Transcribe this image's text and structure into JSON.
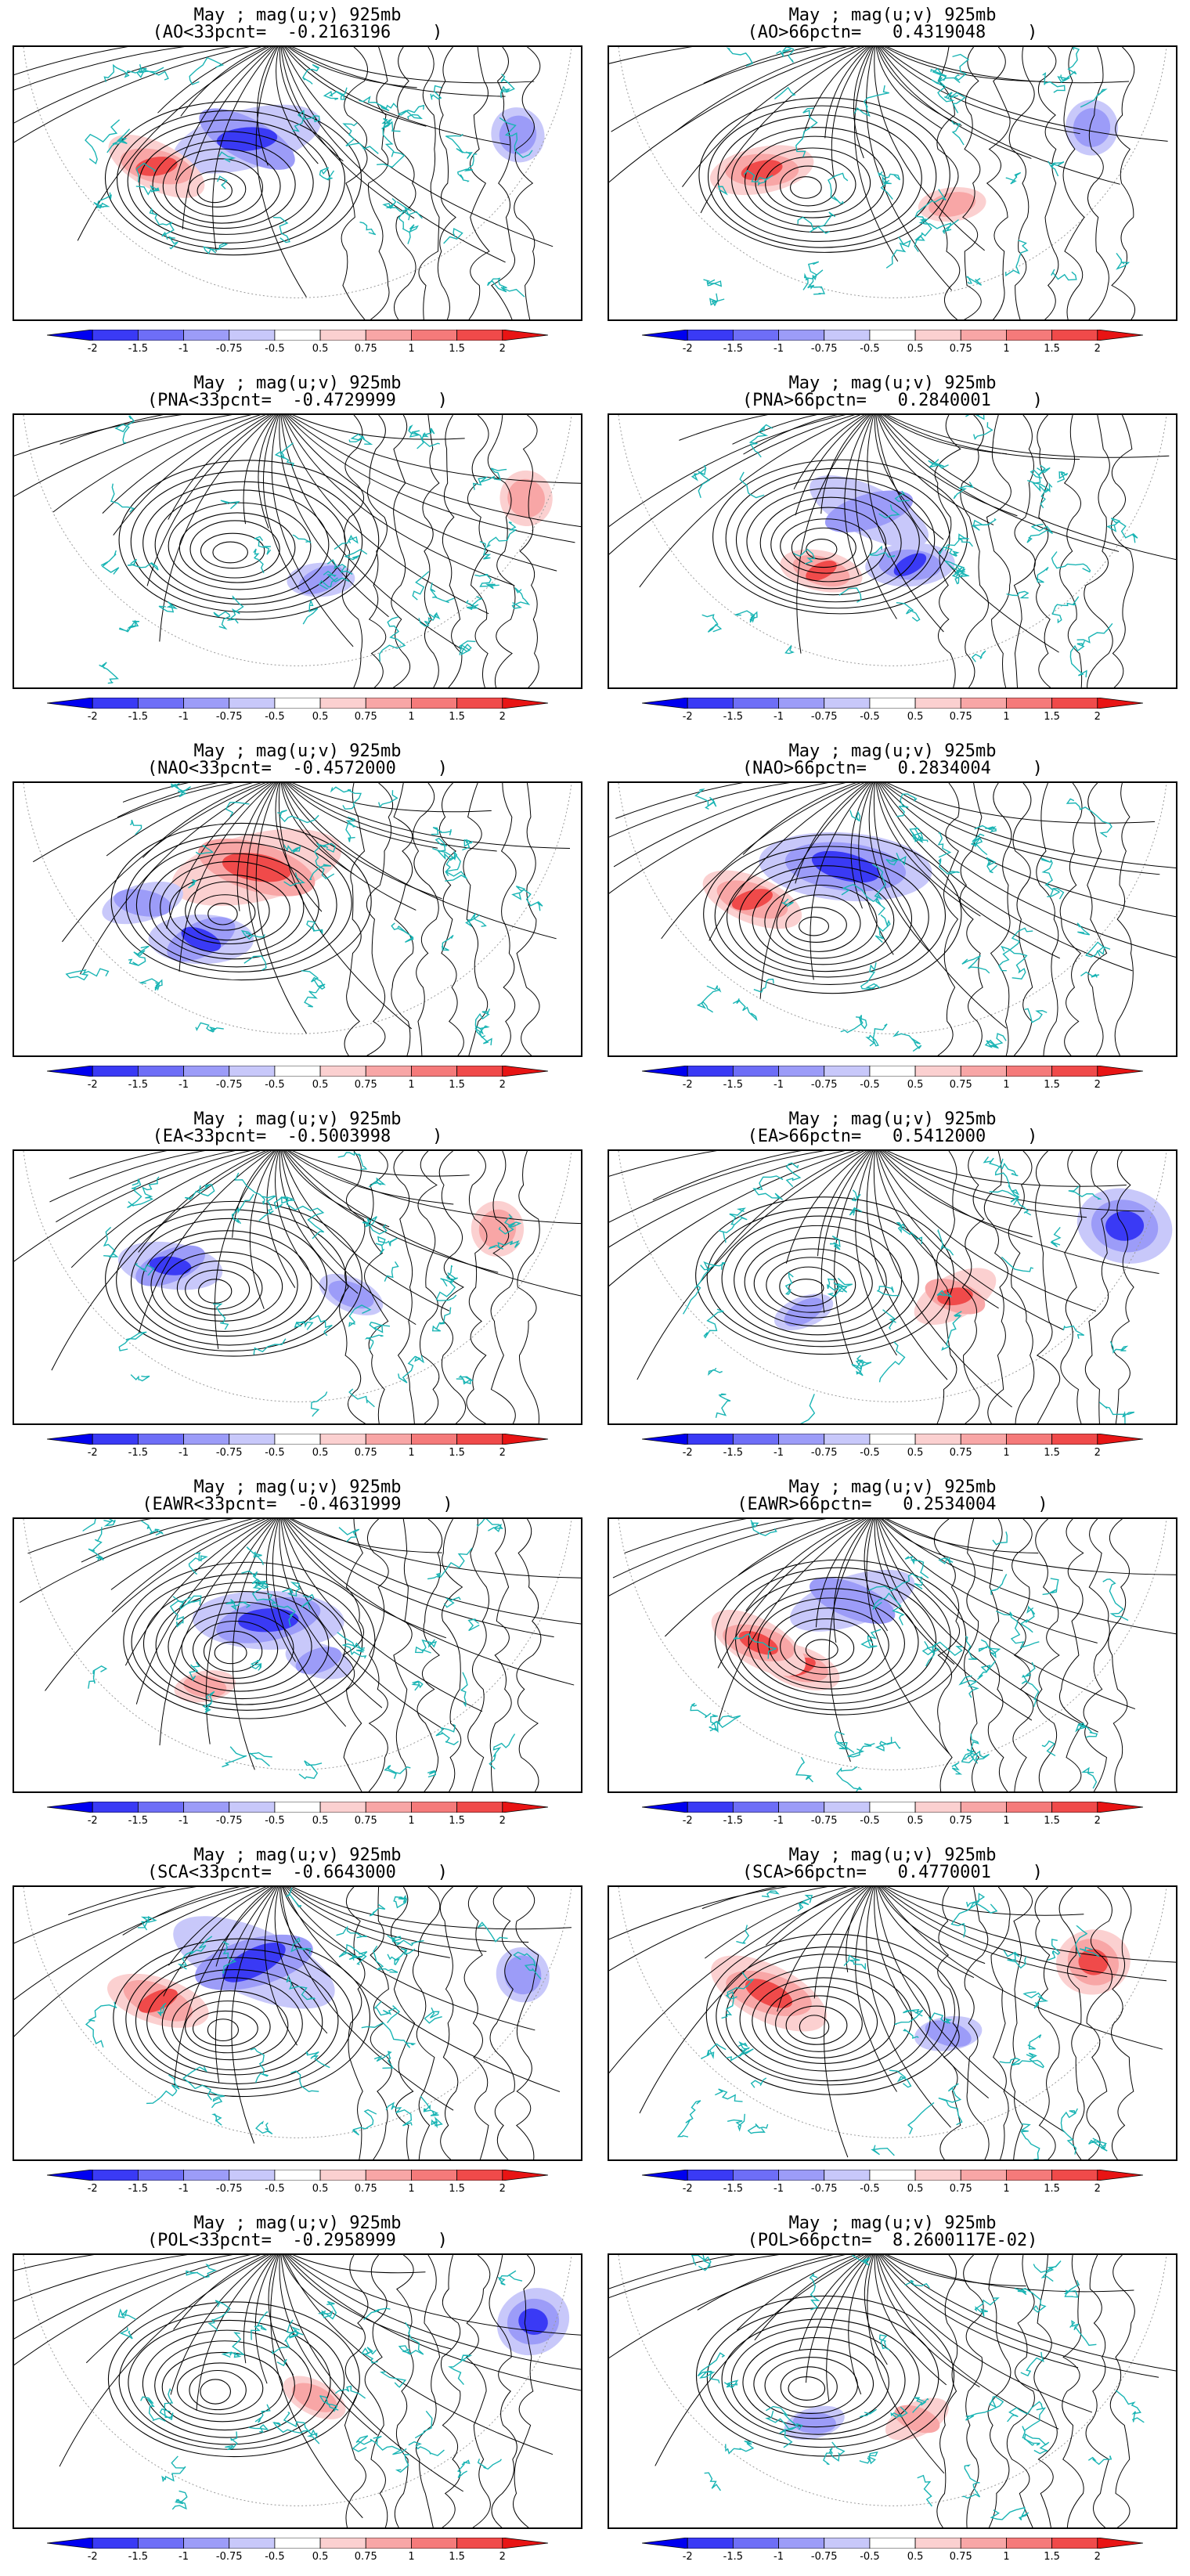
{
  "panels": [
    {
      "line1": "May ; mag(u;v) 925mb",
      "line2": "(AO<33pcnt=  -0.2163196    )"
    },
    {
      "line1": "May ; mag(u;v) 925mb",
      "line2": "(AO>66pctn=   0.4319048    )"
    },
    {
      "line1": "May ; mag(u;v) 925mb",
      "line2": "(PNA<33pcnt=  -0.4729999    )"
    },
    {
      "line1": "May ; mag(u;v) 925mb",
      "line2": "(PNA>66pctn=   0.2840001    )"
    },
    {
      "line1": "May ; mag(u;v) 925mb",
      "line2": "(NAO<33pcnt=  -0.4572000    )"
    },
    {
      "line1": "May ; mag(u;v) 925mb",
      "line2": "(NAO>66pctn=   0.2834004    )"
    },
    {
      "line1": "May ; mag(u;v) 925mb",
      "line2": "(EA<33pcnt=  -0.5003998    )"
    },
    {
      "line1": "May ; mag(u;v) 925mb",
      "line2": "(EA>66pctn=   0.5412000    )"
    },
    {
      "line1": "May ; mag(u;v) 925mb",
      "line2": "(EAWR<33pcnt=  -0.4631999    )"
    },
    {
      "line1": "May ; mag(u;v) 925mb",
      "line2": "(EAWR>66pctn=   0.2534004    )"
    },
    {
      "line1": "May ; mag(u;v) 925mb",
      "line2": "(SCA<33pcnt=  -0.6643000    )"
    },
    {
      "line1": "May ; mag(u;v) 925mb",
      "line2": "(SCA>66pctn=   0.4770001    )"
    },
    {
      "line1": "May ; mag(u;v) 925mb",
      "line2": "(POL<33pcnt=  -0.2958999    )"
    },
    {
      "line1": "May ; mag(u;v) 925mb",
      "line2": "(POL>66pctn=  8.2600117E-02)"
    }
  ],
  "colorbar": {
    "ticks": [
      "-2",
      "-1.5",
      "-1",
      "-0.75",
      "-0.5",
      "0.5",
      "0.75",
      "1",
      "1.5",
      "2"
    ],
    "colors": [
      "#0000f0",
      "#3a3af5",
      "#6e6ef7",
      "#9c9cf8",
      "#c8c8fa",
      "#ffffff",
      "#fbd0d0",
      "#f8a6a6",
      "#f57a7a",
      "#f04a4a",
      "#e81414"
    ]
  },
  "colors": {
    "coast": "#19b4b4",
    "stream": "#000000",
    "positive": "#e83030",
    "negative": "#3030e8"
  },
  "blobs": [
    [
      {
        "c": "neg",
        "s": 2
      },
      {
        "c": "pos",
        "s": 2
      },
      {
        "c": "neg",
        "s": 1
      }
    ],
    [
      {
        "c": "pos",
        "s": 2
      },
      {
        "c": "neg",
        "s": 1
      },
      {
        "c": "pos",
        "s": 1
      }
    ],
    [
      {
        "c": "pos",
        "s": 1
      },
      {
        "c": "neg",
        "s": 1
      }
    ],
    [
      {
        "c": "neg",
        "s": 2
      },
      {
        "c": "pos",
        "s": 2
      },
      {
        "c": "neg",
        "s": 1
      }
    ],
    [
      {
        "c": "neg",
        "s": 3
      },
      {
        "c": "pos",
        "s": 3
      },
      {
        "c": "neg",
        "s": 1
      }
    ],
    [
      {
        "c": "neg",
        "s": 3
      },
      {
        "c": "pos",
        "s": 2
      }
    ],
    [
      {
        "c": "neg",
        "s": 2
      },
      {
        "c": "pos",
        "s": 1
      },
      {
        "c": "neg",
        "s": 1
      }
    ],
    [
      {
        "c": "neg",
        "s": 3
      },
      {
        "c": "pos",
        "s": 2
      },
      {
        "c": "neg",
        "s": 1
      }
    ],
    [
      {
        "c": "neg",
        "s": 1
      },
      {
        "c": "pos",
        "s": 1
      },
      {
        "c": "neg",
        "s": 2
      }
    ],
    [
      {
        "c": "pos",
        "s": 2
      },
      {
        "c": "neg",
        "s": 1
      },
      {
        "c": "pos",
        "s": 2
      }
    ],
    [
      {
        "c": "neg",
        "s": 3
      },
      {
        "c": "pos",
        "s": 2
      },
      {
        "c": "neg",
        "s": 1
      }
    ],
    [
      {
        "c": "pos",
        "s": 3
      },
      {
        "c": "pos",
        "s": 2
      },
      {
        "c": "neg",
        "s": 1
      }
    ],
    [
      {
        "c": "neg",
        "s": 2
      },
      {
        "c": "pos",
        "s": 1
      }
    ],
    [
      {
        "c": "pos",
        "s": 1
      },
      {
        "c": "neg",
        "s": 1
      }
    ]
  ]
}
